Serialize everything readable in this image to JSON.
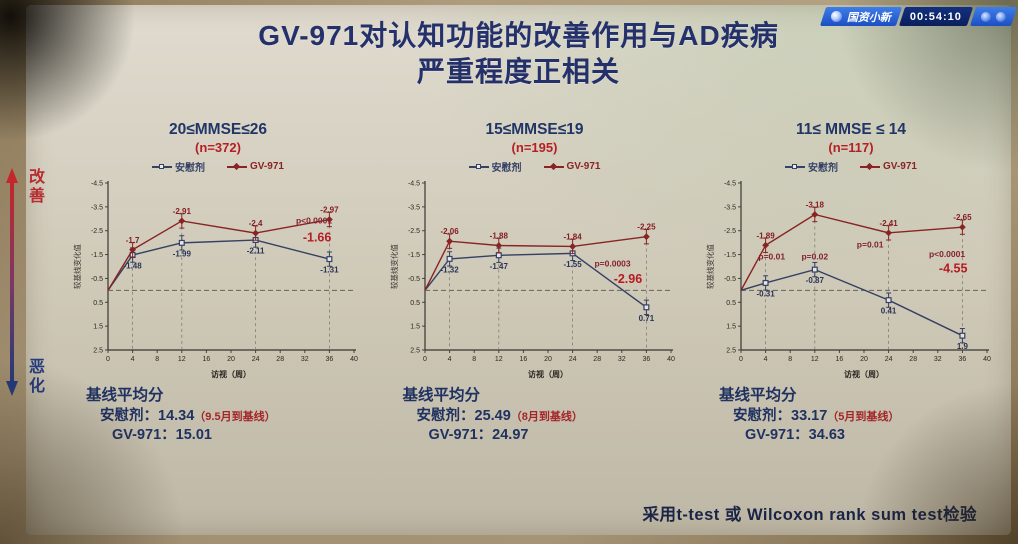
{
  "overlay": {
    "channel": "国资小新",
    "time": "00:54:10"
  },
  "title": {
    "line1": "GV-971对认知功能的改善作用与AD疾病",
    "line2": "严重程度正相关"
  },
  "side": {
    "top": "改善",
    "bottom": "恶化"
  },
  "footer": "采用t-test 或 Wilcoxon rank sum test检验",
  "legend": {
    "placebo": "安慰剂",
    "drug": "GV-971"
  },
  "axis": {
    "y_label": "较基线变化值",
    "x_label": "访视（周）",
    "y_ticks": [
      -4.5,
      -3.5,
      -2.5,
      -1.5,
      -0.5,
      0.5,
      1.5,
      2.5
    ],
    "x_ticks": [
      0,
      4,
      8,
      12,
      16,
      20,
      24,
      28,
      32,
      36,
      40
    ]
  },
  "chart_data": [
    {
      "type": "line",
      "title": "20≤MMSE≤26",
      "n": "(n=372)",
      "xlim": [
        0,
        40
      ],
      "ylim": [
        -4.5,
        2.5
      ],
      "y_inverted": true,
      "weeks": [
        0,
        4,
        12,
        24,
        36
      ],
      "series": [
        {
          "name": "安慰剂",
          "color": "#2e3f6e",
          "values": [
            0,
            -1.48,
            -1.99,
            -2.11,
            -1.31
          ],
          "labels": [
            "",
            "-1.48",
            "-1.99",
            "-2.11",
            "-1.31"
          ]
        },
        {
          "name": "GV-971",
          "color": "#8f1d22",
          "values": [
            0,
            -1.7,
            -2.91,
            -2.4,
            -2.97
          ],
          "labels": [
            "",
            "-1.7",
            "-2.91",
            "-2.4",
            "-2.97"
          ]
        }
      ],
      "annotations": [
        {
          "text": "p<0.0001",
          "x": 33.5,
          "y": -2.8,
          "kind": "p"
        },
        {
          "text": "-1.66",
          "x": 34,
          "y": -2.05,
          "kind": "diff"
        }
      ],
      "baseline": {
        "heading": "基线平均分",
        "row1_label": "安慰剂：",
        "row1_value": "14.34",
        "row1_note": "（9.5月到基线）",
        "row2_label": "GV-971：",
        "row2_value": "15.01"
      }
    },
    {
      "type": "line",
      "title": "15≤MMSE≤19",
      "n": "(n=195)",
      "xlim": [
        0,
        40
      ],
      "ylim": [
        -4.5,
        2.5
      ],
      "y_inverted": true,
      "weeks": [
        0,
        4,
        12,
        24,
        36
      ],
      "series": [
        {
          "name": "安慰剂",
          "color": "#2e3f6e",
          "values": [
            0,
            -1.32,
            -1.47,
            -1.55,
            0.71
          ],
          "labels": [
            "",
            "-1.32",
            "-1.47",
            "-1.55",
            "0.71"
          ]
        },
        {
          "name": "GV-971",
          "color": "#8f1d22",
          "values": [
            0,
            -2.06,
            -1.88,
            -1.84,
            -2.25
          ],
          "labels": [
            "",
            "-2.06",
            "-1.88",
            "-1.84",
            "-2.25"
          ]
        }
      ],
      "annotations": [
        {
          "text": "p=0.0003",
          "x": 30.5,
          "y": -1.0,
          "kind": "p"
        },
        {
          "text": "-2.96",
          "x": 33,
          "y": -0.3,
          "kind": "diff"
        }
      ],
      "baseline": {
        "heading": "基线平均分",
        "row1_label": "安慰剂：",
        "row1_value": "25.49",
        "row1_note": "（8月到基线）",
        "row2_label": "GV-971：",
        "row2_value": "24.97"
      }
    },
    {
      "type": "line",
      "title": "11≤ MMSE ≤ 14",
      "n": "(n=117)",
      "xlim": [
        0,
        40
      ],
      "ylim": [
        -4.5,
        2.5
      ],
      "y_inverted": true,
      "weeks": [
        0,
        4,
        12,
        24,
        36
      ],
      "series": [
        {
          "name": "安慰剂",
          "color": "#2e3f6e",
          "values": [
            0,
            -0.31,
            -0.87,
            0.41,
            1.9
          ],
          "labels": [
            "",
            "-0.31",
            "-0.87",
            "0.41",
            "1.9"
          ]
        },
        {
          "name": "GV-971",
          "color": "#8f1d22",
          "values": [
            0,
            -1.89,
            -3.18,
            -2.41,
            -2.65
          ],
          "labels": [
            "",
            "-1.89",
            "-3.18",
            "-2.41",
            "-2.65"
          ]
        }
      ],
      "annotations": [
        {
          "text": "p=0.01",
          "x": 5,
          "y": -1.3,
          "kind": "p"
        },
        {
          "text": "p=0.02",
          "x": 12,
          "y": -1.3,
          "kind": "p"
        },
        {
          "text": "p=0.01",
          "x": 21,
          "y": -1.8,
          "kind": "p"
        },
        {
          "text": "p<0.0001",
          "x": 33.5,
          "y": -1.4,
          "kind": "p"
        },
        {
          "text": "-4.55",
          "x": 34.5,
          "y": -0.75,
          "kind": "diff"
        }
      ],
      "baseline": {
        "heading": "基线平均分",
        "row1_label": "安慰剂：",
        "row1_value": "33.17",
        "row1_note": "（5月到基线）",
        "row2_label": "GV-971：",
        "row2_value": "34.63"
      }
    }
  ]
}
